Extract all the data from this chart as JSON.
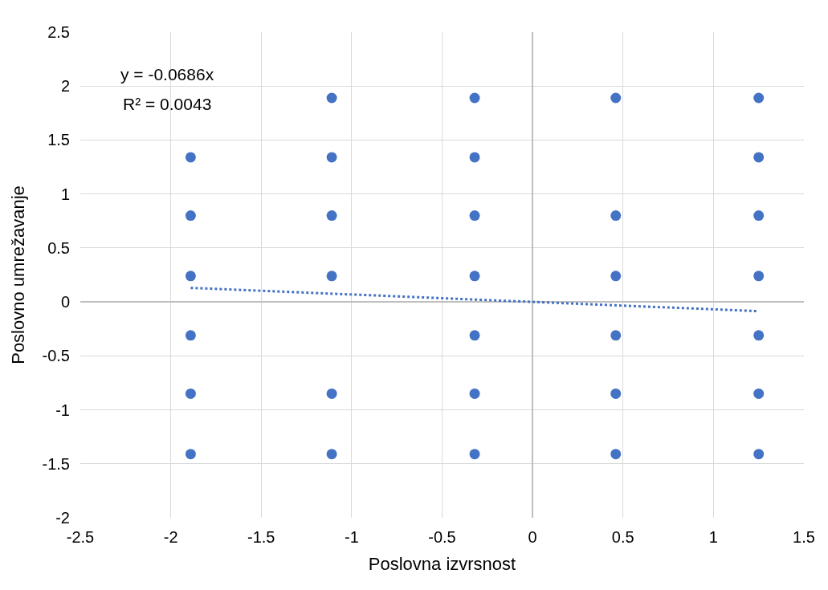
{
  "chart_data": {
    "type": "scatter",
    "xlabel": "Poslovna izvrsnost",
    "ylabel": "Poslovno umrežavanje",
    "xlim": [
      -2.5,
      1.5
    ],
    "xticks": [
      -2.5,
      -2,
      -1.5,
      -1,
      -0.5,
      0,
      0.5,
      1,
      1.5
    ],
    "ylim": [
      -2,
      2.5
    ],
    "yticks": [
      -2,
      -1.5,
      -1,
      -0.5,
      0,
      0.5,
      1,
      1.5,
      2,
      2.5
    ],
    "grid": true,
    "annotations": [
      "y = -0.0686x",
      "R² = 0.0043"
    ],
    "series": [
      {
        "color": "#4472c4",
        "marker": "circle",
        "x": [
          -1.89,
          -1.89,
          -1.89,
          -1.89,
          -1.89,
          -1.89,
          -1.11,
          -1.11,
          -1.11,
          -1.11,
          -1.11,
          -1.11,
          -0.32,
          -0.32,
          -0.32,
          -0.32,
          -0.32,
          -0.32,
          -0.32,
          0.46,
          0.46,
          0.46,
          0.46,
          0.46,
          0.46,
          1.25,
          1.25,
          1.25,
          1.25,
          1.25,
          1.25,
          1.25
        ],
        "values": [
          1.34,
          0.8,
          0.24,
          -0.31,
          -0.85,
          -1.41,
          1.89,
          1.34,
          0.8,
          0.24,
          -0.85,
          -1.41,
          1.89,
          1.34,
          0.8,
          0.24,
          -0.31,
          -0.85,
          -1.41,
          1.89,
          0.8,
          0.24,
          -0.31,
          -0.85,
          -1.41,
          1.89,
          1.34,
          0.8,
          0.24,
          -0.31,
          -0.85,
          -1.41
        ]
      },
      {
        "type": "line",
        "color": "#4472c4",
        "marker": "none",
        "line_style": "dotted",
        "x": [
          -1.89,
          1.25
        ],
        "values": [
          0.13,
          -0.086
        ]
      }
    ]
  }
}
